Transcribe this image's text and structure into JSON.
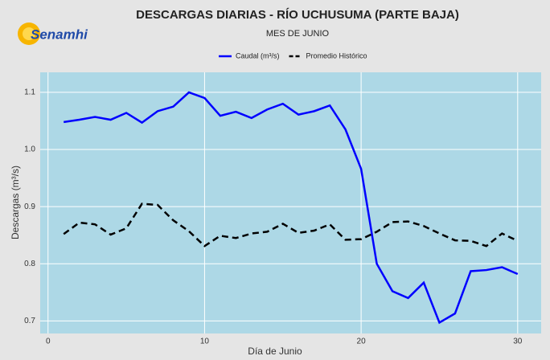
{
  "logo": {
    "text": "Senamhi"
  },
  "chart_data": {
    "type": "line",
    "title": "DESCARGAS DIARIAS - RÍO UCHUSUMA (PARTE BAJA)",
    "subtitle": "MES DE JUNIO",
    "xlabel": "Día de Junio",
    "ylabel": "Descargas (m³/s)",
    "x": [
      1,
      2,
      3,
      4,
      5,
      6,
      7,
      8,
      9,
      10,
      11,
      12,
      13,
      14,
      15,
      16,
      17,
      18,
      19,
      20,
      21,
      22,
      23,
      24,
      25,
      26,
      27,
      28,
      29,
      30
    ],
    "series": [
      {
        "name": "Caudal (m³/s)",
        "color": "#0000ff",
        "linestyle": "solid",
        "values": [
          1.048,
          1.052,
          1.057,
          1.052,
          1.064,
          1.047,
          1.067,
          1.075,
          1.1,
          1.09,
          1.059,
          1.066,
          1.055,
          1.07,
          1.08,
          1.061,
          1.067,
          1.077,
          1.035,
          0.966,
          0.8,
          0.752,
          0.74,
          0.767,
          0.697,
          0.713,
          0.787,
          0.789,
          0.794,
          0.782
        ]
      },
      {
        "name": "Promedio Histórico",
        "color": "#000000",
        "linestyle": "dashed",
        "values": [
          0.852,
          0.872,
          0.869,
          0.851,
          0.862,
          0.905,
          0.903,
          0.876,
          0.857,
          0.831,
          0.849,
          0.845,
          0.853,
          0.856,
          0.87,
          0.854,
          0.858,
          0.869,
          0.842,
          0.843,
          0.856,
          0.873,
          0.874,
          0.866,
          0.853,
          0.841,
          0.84,
          0.831,
          0.853,
          0.84
        ]
      }
    ],
    "xlim": [
      -0.5,
      31.5
    ],
    "xticks": [
      0,
      10,
      20,
      30
    ],
    "ylim": [
      0.678,
      1.135
    ],
    "yticks": [
      0.7,
      0.8,
      0.9,
      {
        "value": 1,
        "label": "1.0"
      },
      1.1
    ],
    "grid": true,
    "legend": "top"
  }
}
